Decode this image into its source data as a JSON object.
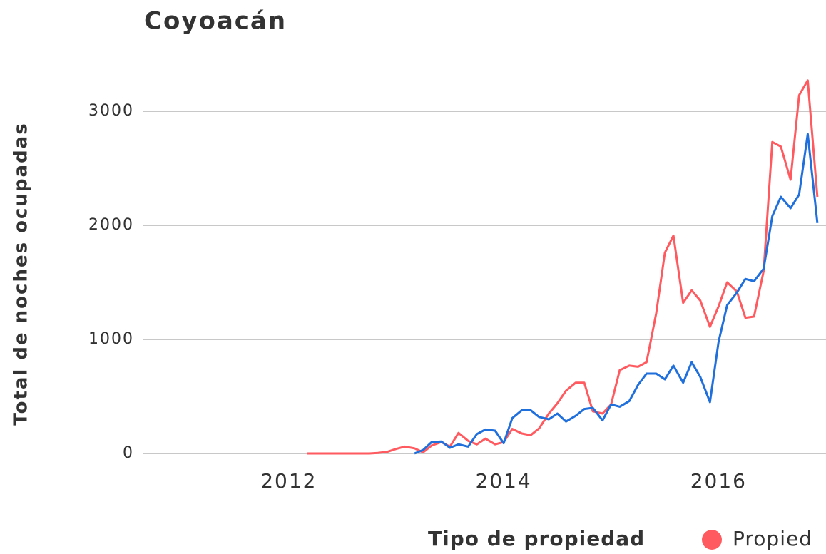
{
  "chart_data": {
    "type": "line",
    "title": "Coyoacán",
    "ylabel": "Total de noches ocupadas",
    "legend_title": "Tipo de propiedad",
    "xlim": [
      2010.64,
      2017.0
    ],
    "xticks": [
      2012,
      2014,
      2016
    ],
    "ylim": [
      -100,
      3600
    ],
    "yticks": [
      0,
      1000,
      2000,
      3000
    ],
    "grid": true,
    "x": [
      2012.17,
      2012.25,
      2012.33,
      2012.42,
      2012.5,
      2012.58,
      2012.67,
      2012.75,
      2012.83,
      2012.92,
      2013.0,
      2013.08,
      2013.17,
      2013.25,
      2013.33,
      2013.42,
      2013.5,
      2013.58,
      2013.67,
      2013.75,
      2013.83,
      2013.92,
      2014.0,
      2014.08,
      2014.17,
      2014.25,
      2014.33,
      2014.42,
      2014.5,
      2014.58,
      2014.67,
      2014.75,
      2014.83,
      2014.92,
      2015.0,
      2015.08,
      2015.17,
      2015.25,
      2015.33,
      2015.42,
      2015.5,
      2015.58,
      2015.67,
      2015.75,
      2015.83,
      2015.92,
      2016.0,
      2016.08,
      2016.17,
      2016.25,
      2016.33,
      2016.42,
      2016.5,
      2016.58,
      2016.67,
      2016.75,
      2016.83,
      2016.92
    ],
    "series": [
      {
        "name": "Propied",
        "color": "#ff5a5f",
        "values": [
          0,
          0,
          0,
          0,
          0,
          0,
          0,
          0,
          5,
          15,
          40,
          60,
          45,
          10,
          70,
          100,
          60,
          180,
          110,
          80,
          130,
          80,
          100,
          215,
          175,
          160,
          220,
          350,
          440,
          550,
          620,
          620,
          370,
          350,
          430,
          730,
          770,
          760,
          800,
          1230,
          1760,
          1910,
          1320,
          1430,
          1340,
          1110,
          1290,
          1500,
          1420,
          1190,
          1200,
          1600,
          2730,
          2690,
          2400,
          3140,
          3270,
          2250
        ]
      },
      {
        "color": "#1f6fdc",
        "values": [
          null,
          null,
          null,
          null,
          null,
          null,
          null,
          null,
          null,
          null,
          null,
          null,
          0,
          30,
          100,
          105,
          50,
          80,
          60,
          170,
          210,
          200,
          90,
          310,
          380,
          380,
          320,
          300,
          350,
          280,
          330,
          390,
          400,
          290,
          430,
          410,
          460,
          600,
          700,
          700,
          650,
          770,
          620,
          800,
          670,
          450,
          980,
          1300,
          1410,
          1530,
          1510,
          1620,
          2080,
          2250,
          2150,
          2270,
          2800,
          2020
        ]
      }
    ]
  }
}
